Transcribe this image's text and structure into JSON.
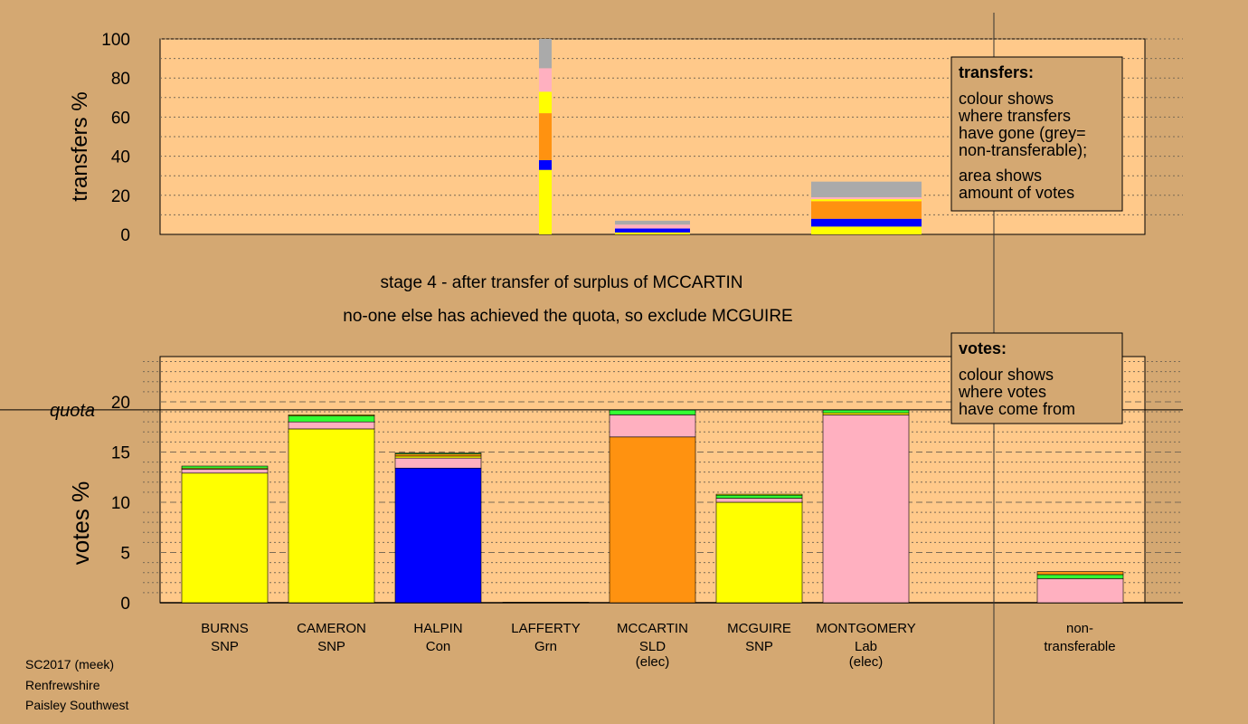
{
  "footer": {
    "line1": "SC2017 (meek)",
    "line2": "Renfrewshire",
    "line3": "Paisley Southwest"
  },
  "stage": {
    "line1": "stage 4 - after transfer of surplus of MCCARTIN",
    "line2": "no-one else has achieved the quota, so exclude MCGUIRE"
  },
  "legend_transfers": {
    "title": "transfers:",
    "lines": [
      "colour shows",
      "where transfers",
      "have gone (grey=",
      "non-transferable);",
      "area shows",
      "amount of votes"
    ]
  },
  "legend_votes": {
    "title": "votes:",
    "lines": [
      "colour shows",
      "where votes",
      "have come from"
    ]
  },
  "colors": {
    "background": "#d4a872",
    "plot_bg": "#ffc98a",
    "SNP": "#ffff00",
    "Con": "#0000ff",
    "SLD": "#ff9210",
    "Lab": "#ffb0c0",
    "Grn": "#33ff33",
    "nontransferable": "#aaaaaa"
  },
  "chart_data": [
    {
      "type": "bar",
      "name": "transfers",
      "ylabel": "transfers %",
      "ylim": [
        0,
        100
      ],
      "yticks": [
        0,
        20,
        40,
        60,
        80,
        100
      ],
      "columns": [
        {
          "stack": [
            {
              "party": "SNP",
              "value": 33
            },
            {
              "party": "Con",
              "value": 5
            },
            {
              "party": "SLD",
              "value": 24
            },
            {
              "party": "SNP",
              "value": 11
            },
            {
              "party": "Lab",
              "value": 12
            },
            {
              "party": "nontransferable",
              "value": 15
            }
          ]
        },
        {
          "stack": [
            {
              "party": "SNP",
              "value": 1
            },
            {
              "party": "Con",
              "value": 2
            },
            {
              "party": "Lab",
              "value": 2
            },
            {
              "party": "nontransferable",
              "value": 2
            }
          ]
        },
        {
          "stack": [
            {
              "party": "SNP",
              "value": 4
            },
            {
              "party": "Con",
              "value": 4
            },
            {
              "party": "SLD",
              "value": 9
            },
            {
              "party": "SNP",
              "value": 1
            },
            {
              "party": "Lab",
              "value": 1
            },
            {
              "party": "nontransferable",
              "value": 8
            }
          ]
        }
      ]
    },
    {
      "type": "bar",
      "name": "votes",
      "ylabel": "votes %",
      "quota_label": "quota",
      "quota": 19.2,
      "ylim": [
        0,
        24.5
      ],
      "yticks": [
        0,
        5,
        10,
        15,
        20
      ],
      "categories": [
        {
          "name": "BURNS",
          "party": "SNP",
          "note": ""
        },
        {
          "name": "CAMERON",
          "party": "SNP",
          "note": ""
        },
        {
          "name": "HALPIN",
          "party": "Con",
          "note": ""
        },
        {
          "name": "LAFFERTY",
          "party": "Grn",
          "note": ""
        },
        {
          "name": "MCCARTIN",
          "party": "SLD",
          "note": "(elec)"
        },
        {
          "name": "MCGUIRE",
          "party": "SNP",
          "note": ""
        },
        {
          "name": "MONTGOMERY",
          "party": "Lab",
          "note": "(elec)"
        }
      ],
      "stacks": [
        [
          {
            "party": "SNP",
            "value": 12.9
          },
          {
            "party": "Lab",
            "value": 0.4
          },
          {
            "party": "SNP",
            "value": 0.1
          },
          {
            "party": "Grn",
            "value": 0.2
          }
        ],
        [
          {
            "party": "SNP",
            "value": 17.3
          },
          {
            "party": "Lab",
            "value": 0.7
          },
          {
            "party": "Grn",
            "value": 0.6
          },
          {
            "party": "SNP",
            "value": 0.1
          }
        ],
        [
          {
            "party": "Con",
            "value": 13.4
          },
          {
            "party": "Lab",
            "value": 1.0
          },
          {
            "party": "SNP",
            "value": 0.2
          },
          {
            "party": "SLD",
            "value": 0.2
          },
          {
            "party": "Grn",
            "value": 0.1
          }
        ],
        [
          {
            "party": "Grn",
            "value": 0.05
          }
        ],
        [
          {
            "party": "SLD",
            "value": 16.5
          },
          {
            "party": "Lab",
            "value": 2.2
          },
          {
            "party": "Grn",
            "value": 0.5
          }
        ],
        [
          {
            "party": "SNP",
            "value": 10.0
          },
          {
            "party": "Lab",
            "value": 0.4
          },
          {
            "party": "Grn",
            "value": 0.3
          },
          {
            "party": "SNP",
            "value": 0.1
          }
        ],
        [
          {
            "party": "Lab",
            "value": 18.7
          },
          {
            "party": "SNP",
            "value": 0.2
          },
          {
            "party": "Grn",
            "value": 0.3
          }
        ]
      ],
      "nontransferable": {
        "label1": "non-",
        "label2": "transferable",
        "stack": [
          {
            "party": "Lab",
            "value": 2.4
          },
          {
            "party": "Grn",
            "value": 0.4
          },
          {
            "party": "SLD",
            "value": 0.3
          }
        ]
      }
    }
  ]
}
